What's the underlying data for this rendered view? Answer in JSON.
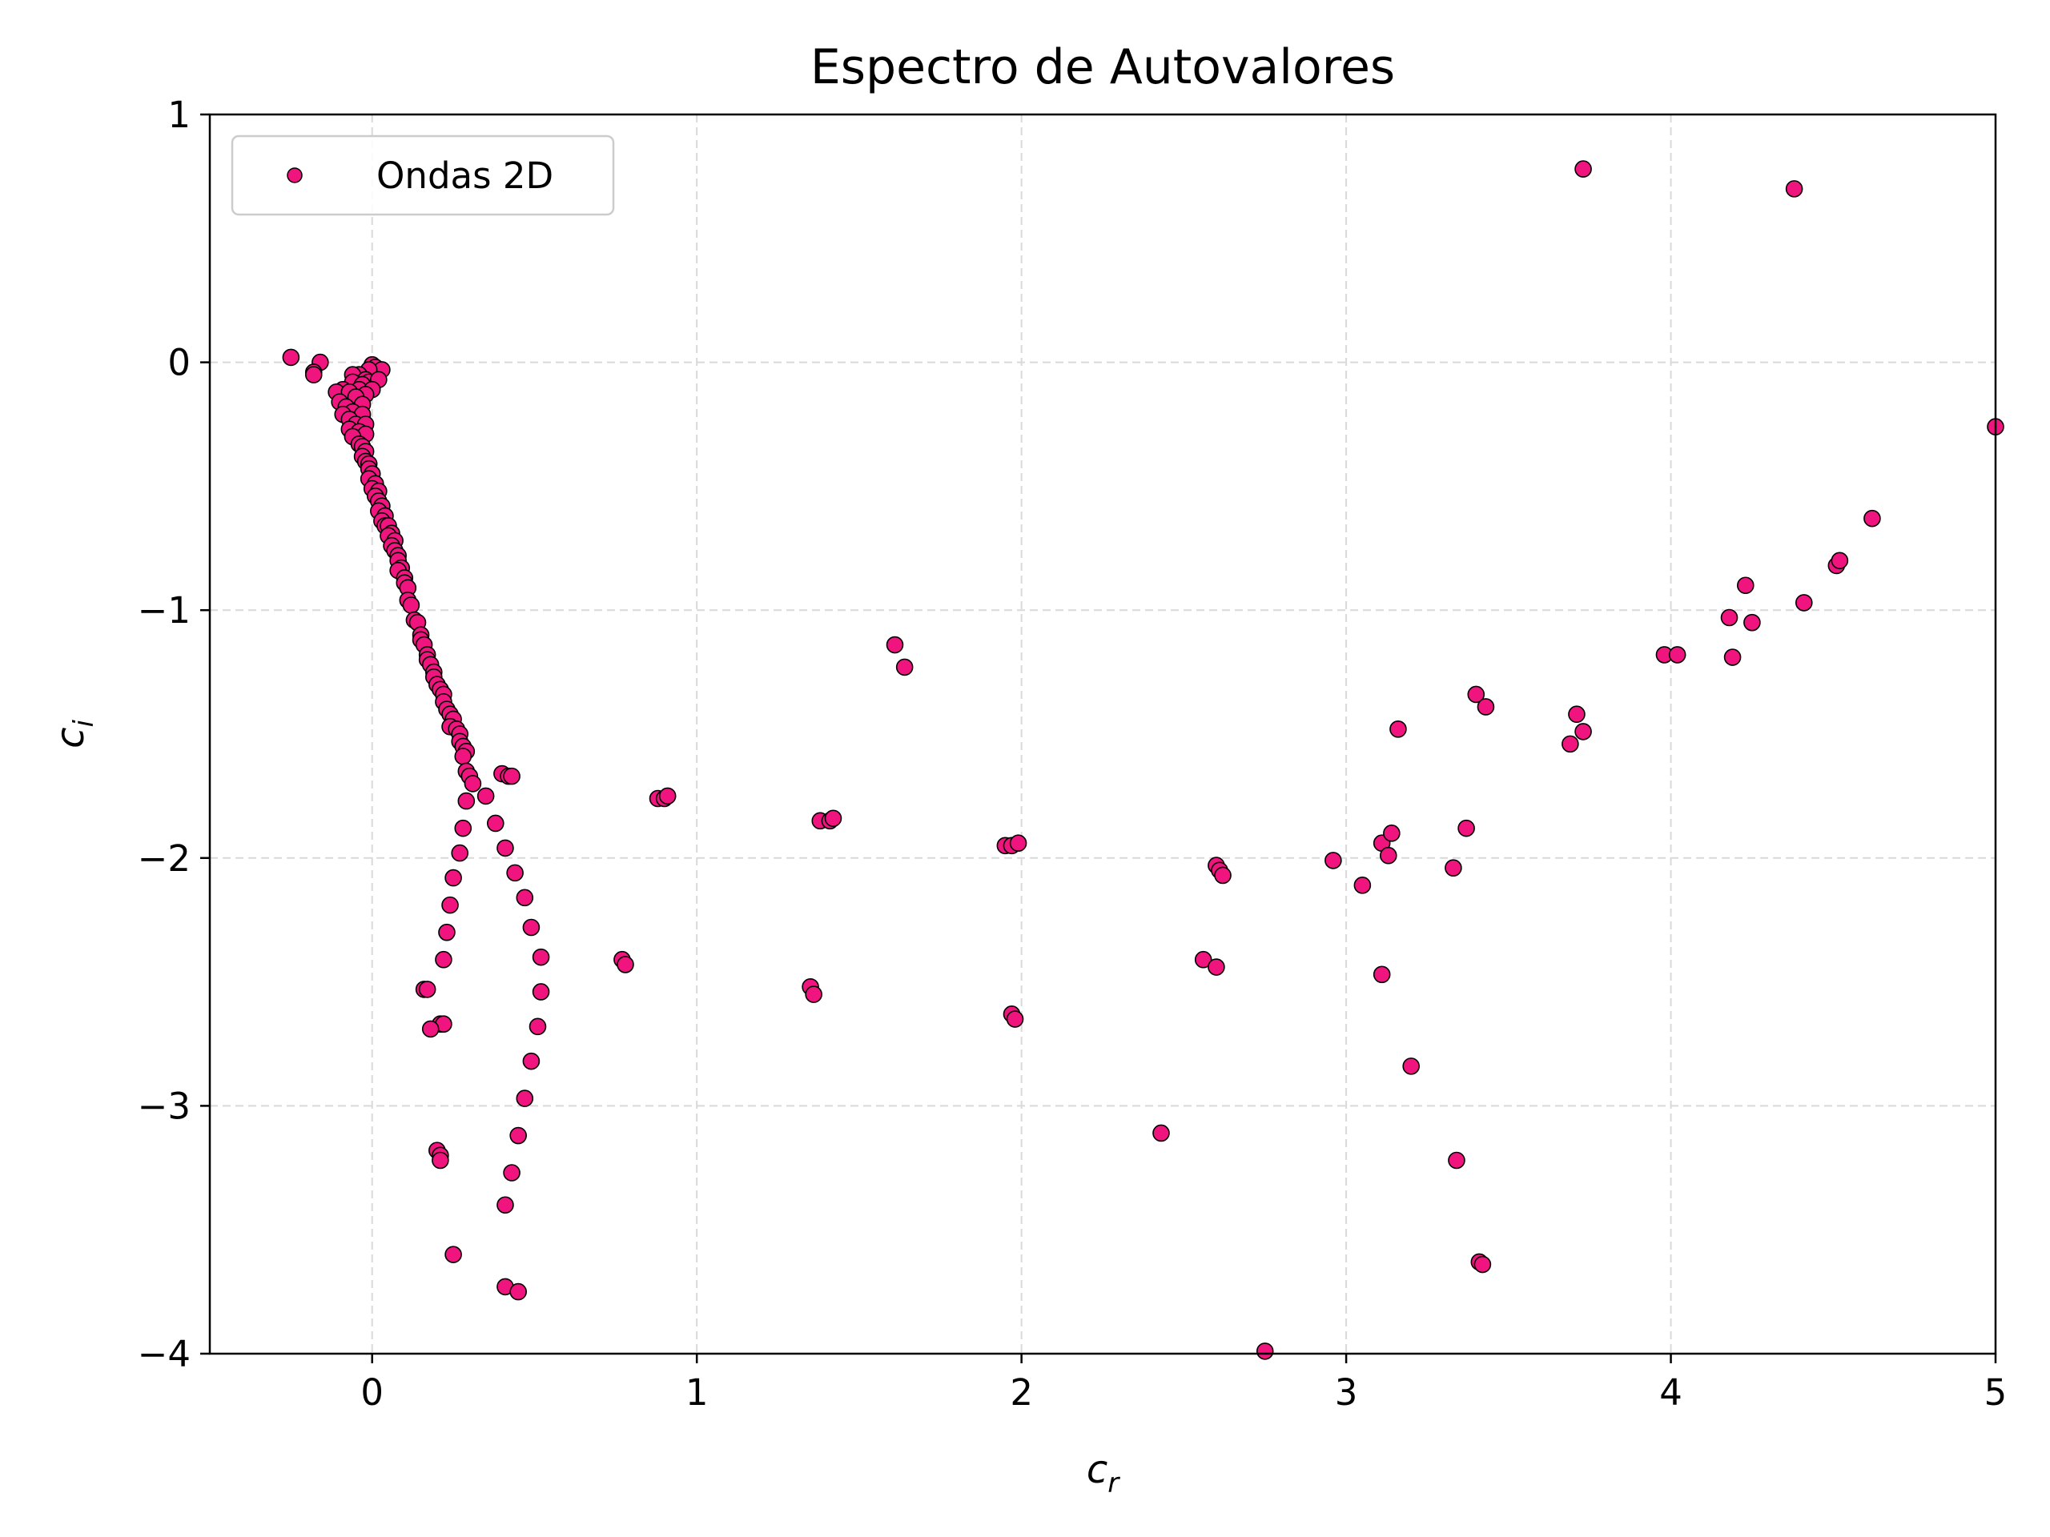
{
  "chart_data": {
    "type": "scatter",
    "title": "Espectro de Autovalores",
    "xlabel": {
      "base": "c",
      "sub": "r"
    },
    "ylabel": {
      "base": "c",
      "sub": "i"
    },
    "xlim": [
      -0.5,
      5
    ],
    "ylim": [
      -4,
      1
    ],
    "xticks": [
      0,
      1,
      2,
      3,
      4,
      5
    ],
    "xtick_labels": [
      "0",
      "1",
      "2",
      "3",
      "4",
      "5"
    ],
    "yticks": [
      -4,
      -3,
      -2,
      -1,
      0,
      1
    ],
    "ytick_labels": [
      "−4",
      "−3",
      "−2",
      "−1",
      "0",
      "1"
    ],
    "grid": true,
    "legend_position": "top-left",
    "colors": {
      "marker_fill": "#f0147f",
      "marker_edge": "#000000",
      "grid": "#d9d9d9"
    },
    "series": [
      {
        "name": "Ondas 2D",
        "points": [
          [
            -0.25,
            0.02
          ],
          [
            -0.16,
            0.0
          ],
          [
            -0.18,
            -0.04
          ],
          [
            -0.18,
            -0.05
          ],
          [
            0.0,
            -0.01
          ],
          [
            0.01,
            -0.02
          ],
          [
            0.03,
            -0.03
          ],
          [
            -0.01,
            -0.03
          ],
          [
            -0.04,
            -0.05
          ],
          [
            -0.06,
            -0.05
          ],
          [
            -0.02,
            -0.07
          ],
          [
            -0.06,
            -0.08
          ],
          [
            -0.01,
            -0.08
          ],
          [
            0.02,
            -0.07
          ],
          [
            -0.03,
            -0.09
          ],
          [
            -0.04,
            -0.11
          ],
          [
            -0.09,
            -0.11
          ],
          [
            -0.11,
            -0.12
          ],
          [
            -0.07,
            -0.12
          ],
          [
            0.0,
            -0.11
          ],
          [
            -0.02,
            -0.13
          ],
          [
            -0.05,
            -0.14
          ],
          [
            -0.1,
            -0.16
          ],
          [
            -0.08,
            -0.18
          ],
          [
            -0.03,
            -0.17
          ],
          [
            -0.06,
            -0.2
          ],
          [
            -0.09,
            -0.21
          ],
          [
            -0.03,
            -0.21
          ],
          [
            -0.07,
            -0.23
          ],
          [
            -0.05,
            -0.25
          ],
          [
            -0.02,
            -0.25
          ],
          [
            -0.07,
            -0.27
          ],
          [
            -0.04,
            -0.28
          ],
          [
            -0.02,
            -0.29
          ],
          [
            -0.06,
            -0.3
          ],
          [
            -0.04,
            -0.33
          ],
          [
            -0.03,
            -0.34
          ],
          [
            -0.02,
            -0.36
          ],
          [
            -0.03,
            -0.38
          ],
          [
            -0.02,
            -0.4
          ],
          [
            -0.01,
            -0.41
          ],
          [
            -0.01,
            -0.43
          ],
          [
            0.0,
            -0.45
          ],
          [
            -0.01,
            -0.47
          ],
          [
            0.01,
            -0.49
          ],
          [
            0.0,
            -0.51
          ],
          [
            0.02,
            -0.52
          ],
          [
            0.01,
            -0.54
          ],
          [
            0.02,
            -0.56
          ],
          [
            0.03,
            -0.58
          ],
          [
            0.02,
            -0.6
          ],
          [
            0.04,
            -0.62
          ],
          [
            0.03,
            -0.64
          ],
          [
            0.04,
            -0.66
          ],
          [
            0.05,
            -0.66
          ],
          [
            0.06,
            -0.69
          ],
          [
            0.05,
            -0.7
          ],
          [
            0.07,
            -0.72
          ],
          [
            0.06,
            -0.74
          ],
          [
            0.07,
            -0.76
          ],
          [
            0.08,
            -0.78
          ],
          [
            0.08,
            -0.8
          ],
          [
            0.09,
            -0.83
          ],
          [
            0.08,
            -0.84
          ],
          [
            0.1,
            -0.87
          ],
          [
            0.1,
            -0.89
          ],
          [
            0.11,
            -0.91
          ],
          [
            0.11,
            -0.96
          ],
          [
            0.12,
            -0.98
          ],
          [
            0.13,
            -1.04
          ],
          [
            0.14,
            -1.05
          ],
          [
            0.15,
            -1.1
          ],
          [
            0.15,
            -1.12
          ],
          [
            0.16,
            -1.14
          ],
          [
            0.17,
            -1.18
          ],
          [
            0.17,
            -1.2
          ],
          [
            0.18,
            -1.22
          ],
          [
            0.19,
            -1.25
          ],
          [
            0.19,
            -1.27
          ],
          [
            0.2,
            -1.3
          ],
          [
            0.21,
            -1.32
          ],
          [
            0.22,
            -1.34
          ],
          [
            0.22,
            -1.37
          ],
          [
            0.23,
            -1.4
          ],
          [
            0.24,
            -1.42
          ],
          [
            0.25,
            -1.44
          ],
          [
            0.24,
            -1.47
          ],
          [
            0.26,
            -1.48
          ],
          [
            0.27,
            -1.5
          ],
          [
            0.27,
            -1.53
          ],
          [
            0.28,
            -1.55
          ],
          [
            0.29,
            -1.57
          ],
          [
            0.28,
            -1.59
          ],
          [
            0.29,
            -1.65
          ],
          [
            0.3,
            -1.67
          ],
          [
            0.31,
            -1.7
          ],
          [
            0.29,
            -1.77
          ],
          [
            0.28,
            -1.88
          ],
          [
            0.27,
            -1.98
          ],
          [
            0.25,
            -2.08
          ],
          [
            0.24,
            -2.19
          ],
          [
            0.23,
            -2.3
          ],
          [
            0.22,
            -2.41
          ],
          [
            0.21,
            -2.67
          ],
          [
            0.22,
            -2.67
          ],
          [
            0.16,
            -2.53
          ],
          [
            0.17,
            -2.53
          ],
          [
            0.18,
            -2.69
          ],
          [
            0.2,
            -3.18
          ],
          [
            0.21,
            -3.2
          ],
          [
            0.21,
            -3.22
          ],
          [
            0.25,
            -3.6
          ],
          [
            0.35,
            -1.75
          ],
          [
            0.38,
            -1.86
          ],
          [
            0.4,
            -1.66
          ],
          [
            0.42,
            -1.67
          ],
          [
            0.43,
            -1.67
          ],
          [
            0.41,
            -1.96
          ],
          [
            0.44,
            -2.06
          ],
          [
            0.47,
            -2.16
          ],
          [
            0.49,
            -2.28
          ],
          [
            0.52,
            -2.4
          ],
          [
            0.52,
            -2.54
          ],
          [
            0.51,
            -2.68
          ],
          [
            0.49,
            -2.82
          ],
          [
            0.47,
            -2.97
          ],
          [
            0.45,
            -3.12
          ],
          [
            0.43,
            -3.27
          ],
          [
            0.41,
            -3.4
          ],
          [
            0.41,
            -3.73
          ],
          [
            0.45,
            -3.75
          ],
          [
            0.77,
            -2.41
          ],
          [
            0.78,
            -2.43
          ],
          [
            0.88,
            -1.76
          ],
          [
            0.9,
            -1.76
          ],
          [
            0.91,
            -1.75
          ],
          [
            1.35,
            -2.52
          ],
          [
            1.36,
            -2.55
          ],
          [
            1.38,
            -1.85
          ],
          [
            1.41,
            -1.85
          ],
          [
            1.42,
            -1.84
          ],
          [
            1.61,
            -1.14
          ],
          [
            1.64,
            -1.23
          ],
          [
            1.95,
            -1.95
          ],
          [
            1.97,
            -1.95
          ],
          [
            1.99,
            -1.94
          ],
          [
            1.97,
            -2.63
          ],
          [
            1.98,
            -2.65
          ],
          [
            2.43,
            -3.11
          ],
          [
            2.56,
            -2.41
          ],
          [
            2.6,
            -2.03
          ],
          [
            2.61,
            -2.05
          ],
          [
            2.62,
            -2.07
          ],
          [
            2.6,
            -2.44
          ],
          [
            2.75,
            -3.99
          ],
          [
            2.96,
            -2.01
          ],
          [
            3.05,
            -2.11
          ],
          [
            3.11,
            -1.94
          ],
          [
            3.14,
            -1.9
          ],
          [
            3.13,
            -1.99
          ],
          [
            3.11,
            -2.47
          ],
          [
            3.16,
            -1.48
          ],
          [
            3.2,
            -2.84
          ],
          [
            3.33,
            -2.04
          ],
          [
            3.34,
            -3.22
          ],
          [
            3.37,
            -1.88
          ],
          [
            3.4,
            -1.34
          ],
          [
            3.43,
            -1.39
          ],
          [
            3.41,
            -3.63
          ],
          [
            3.42,
            -3.64
          ],
          [
            3.69,
            -1.54
          ],
          [
            3.71,
            -1.42
          ],
          [
            3.73,
            -1.49
          ],
          [
            3.73,
            0.78
          ],
          [
            3.98,
            -1.18
          ],
          [
            4.02,
            -1.18
          ],
          [
            4.18,
            -1.03
          ],
          [
            4.19,
            -1.19
          ],
          [
            4.23,
            -0.9
          ],
          [
            4.25,
            -1.05
          ],
          [
            4.38,
            0.7
          ],
          [
            4.41,
            -0.97
          ],
          [
            4.51,
            -0.82
          ],
          [
            4.52,
            -0.8
          ],
          [
            4.62,
            -0.63
          ],
          [
            5.0,
            -0.26
          ]
        ]
      }
    ]
  }
}
